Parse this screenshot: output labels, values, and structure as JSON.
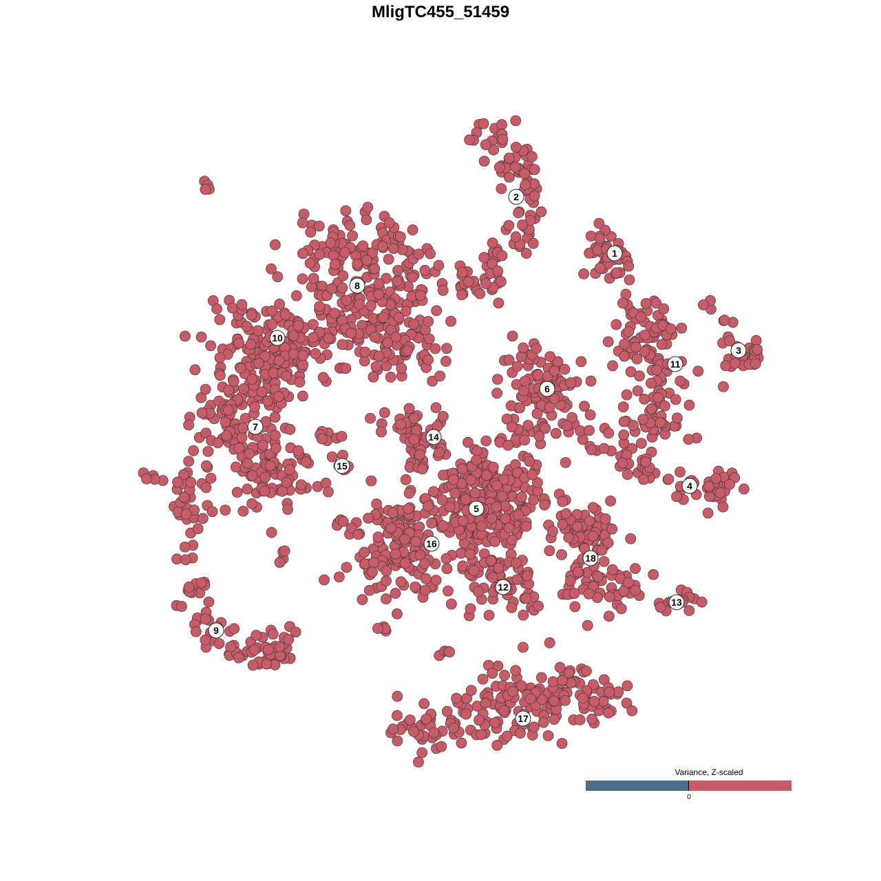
{
  "title": "MligTC455_51459",
  "legend": {
    "title": "Variance, Z-scaled",
    "tick": "0",
    "low_color": "#4f6d8f",
    "high_color": "#c55c68"
  },
  "colors": {
    "point_fill": "#c55c68",
    "point_stroke": "#5a3a3e",
    "label_fill": "#ffffff"
  },
  "chart_data": {
    "type": "scatter",
    "title": "MligTC455_51459",
    "xlabel": "",
    "ylabel": "",
    "grid": false,
    "axes_visible": false,
    "xlim": [
      -64,
      64
    ],
    "ylim": [
      -64,
      64
    ],
    "color_scale": {
      "label": "Variance, Z-scaled",
      "ticks": [
        "0"
      ],
      "all_points_value": "positive"
    },
    "clusters": [
      {
        "id": "1",
        "label": [
          25.3,
          27.2
        ],
        "path": [
          [
            23.5,
            30.5
          ],
          [
            23,
            27.5
          ],
          [
            25.5,
            25.5
          ],
          [
            27,
            26.5
          ]
        ],
        "spread": 1.5,
        "n": 40
      },
      {
        "id": "2",
        "label": [
          11,
          35.4
        ],
        "path": [
          [
            5,
            44.5
          ],
          [
            10,
            42
          ],
          [
            12,
            38
          ],
          [
            12.5,
            34
          ],
          [
            10,
            29
          ],
          [
            7,
            24
          ],
          [
            2.5,
            22.5
          ]
        ],
        "spread": 1.5,
        "n": 110
      },
      {
        "id": "3",
        "label": [
          43.3,
          13.1
        ],
        "path": [
          [
            39,
            19
          ],
          [
            41,
            17
          ],
          [
            43,
            14
          ],
          [
            46,
            12
          ],
          [
            41,
            10.5
          ]
        ],
        "spread": 1.2,
        "n": 35
      },
      {
        "id": "8",
        "label": [
          -12.1,
          22.5
        ],
        "path": [
          [
            -19,
            25
          ],
          [
            -13,
            28
          ],
          [
            -6,
            27
          ],
          [
            -4,
            22
          ],
          [
            -10,
            20
          ],
          [
            -18,
            18
          ],
          [
            -4,
            13
          ],
          [
            -6,
            16
          ]
        ],
        "spread": 3,
        "n": 300
      },
      {
        "id": "10",
        "label": [
          -23.7,
          14.9
        ],
        "path": [
          [
            -32,
            14
          ],
          [
            -25,
            16
          ],
          [
            -19,
            13
          ],
          [
            -28,
            10
          ],
          [
            -22,
            9
          ]
        ],
        "spread": 2.5,
        "n": 140
      },
      {
        "id": "7",
        "label": [
          -26.9,
          2
        ],
        "path": [
          [
            -33,
            6
          ],
          [
            -29,
            4
          ],
          [
            -24,
            7
          ],
          [
            -34,
            2
          ],
          [
            -27,
            -1
          ],
          [
            -24,
            -4
          ],
          [
            -23,
            -7
          ],
          [
            -28,
            -3
          ]
        ],
        "spread": 2.5,
        "n": 180
      },
      {
        "id": "9",
        "label": [
          -32.6,
          -27.6
        ],
        "path": [
          [
            -37,
            -4
          ],
          [
            -37,
            -12
          ],
          [
            -37,
            -20
          ],
          [
            -35,
            -26
          ],
          [
            -30,
            -30
          ],
          [
            -25,
            -32
          ],
          [
            -22,
            -29
          ]
        ],
        "spread": 1.3,
        "n": 110
      },
      {
        "id": "15",
        "label": [
          -14.3,
          -3.7
        ],
        "path": [
          [
            -18,
            1.5
          ],
          [
            -15,
            -1
          ],
          [
            -14.5,
            -4
          ],
          [
            -16,
            -6.5
          ]
        ],
        "spread": 0.8,
        "n": 14
      },
      {
        "id": "14",
        "label": [
          -1,
          0.5
        ],
        "path": [
          [
            -10,
            2.8
          ],
          [
            -5,
            3.5
          ],
          [
            -3,
            1
          ],
          [
            -2,
            -1.5
          ],
          [
            -3,
            -2
          ]
        ],
        "spread": 1.5,
        "n": 50
      },
      {
        "id": "5",
        "label": [
          5.2,
          -9.9
        ],
        "path": [
          [
            2,
            -3
          ],
          [
            5,
            -6
          ],
          [
            8,
            -8
          ],
          [
            4,
            -11
          ],
          [
            6,
            -14
          ],
          [
            10,
            -11
          ],
          [
            12,
            -6
          ],
          [
            3,
            -17
          ]
        ],
        "spread": 3,
        "n": 260
      },
      {
        "id": "16",
        "label": [
          -1.3,
          -15
        ],
        "path": [
          [
            -7,
            -10
          ],
          [
            -3,
            -11
          ],
          [
            -8,
            -15
          ],
          [
            -11,
            -18
          ],
          [
            -3,
            -18
          ],
          [
            -6,
            -13
          ],
          [
            -2,
            -21
          ]
        ],
        "spread": 2.5,
        "n": 150
      },
      {
        "id": "12",
        "label": [
          9.1,
          -21.3
        ],
        "path": [
          [
            6,
            -18
          ],
          [
            9,
            -20
          ],
          [
            11,
            -22
          ],
          [
            7,
            -24
          ]
        ],
        "spread": 2,
        "n": 60
      },
      {
        "id": "6",
        "label": [
          15.5,
          7.5
        ],
        "path": [
          [
            11,
            10.5
          ],
          [
            15,
            11
          ],
          [
            17,
            8
          ],
          [
            13,
            5
          ],
          [
            17,
            4
          ],
          [
            13,
            2
          ],
          [
            11,
            -2
          ]
        ],
        "spread": 2,
        "n": 110
      },
      {
        "id": "18",
        "label": [
          21.8,
          -17.1
        ],
        "path": [
          [
            16,
            -11
          ],
          [
            21,
            -12
          ],
          [
            24,
            -13
          ],
          [
            19,
            -17
          ],
          [
            20,
            -22
          ],
          [
            25,
            -20
          ],
          [
            27,
            -19
          ],
          [
            23,
            -25
          ]
        ],
        "spread": 1.8,
        "n": 110
      },
      {
        "id": "13",
        "label": [
          34.3,
          -23.5
        ],
        "path": [
          [
            32,
            -23.5
          ],
          [
            35,
            -24
          ],
          [
            37,
            -22.5
          ]
        ],
        "spread": 0.8,
        "n": 14
      },
      {
        "id": "11",
        "label": [
          34.1,
          11.1
        ],
        "path": [
          [
            29,
            20
          ],
          [
            31,
            17
          ],
          [
            32,
            14
          ],
          [
            27,
            13
          ],
          [
            33,
            11
          ],
          [
            33,
            6
          ],
          [
            31,
            3
          ],
          [
            28,
            2
          ],
          [
            35,
            1
          ]
        ],
        "spread": 1.8,
        "n": 130
      },
      {
        "id": "4",
        "label": [
          36.2,
          -6.6
        ],
        "path": [
          [
            22,
            3.5
          ],
          [
            24,
            0
          ],
          [
            27,
            -3
          ],
          [
            31,
            -5
          ],
          [
            36,
            -7
          ],
          [
            40,
            -7.5
          ],
          [
            42,
            -6.5
          ]
        ],
        "spread": 1.2,
        "n": 70
      },
      {
        "id": "17",
        "label": [
          12,
          -40.4
        ],
        "path": [
          [
            -6,
            -42
          ],
          [
            -2,
            -42.5
          ],
          [
            4,
            -41.5
          ],
          [
            8,
            -37
          ],
          [
            13,
            -36
          ],
          [
            20,
            -36
          ],
          [
            25,
            -37
          ],
          [
            14,
            -40
          ],
          [
            10,
            -42
          ]
        ],
        "spread": 2,
        "n": 200
      }
    ],
    "outlier_groups": [
      [
        -34.5,
        36.5
      ],
      [
        -42,
        -5
      ],
      [
        -23,
        -16.5
      ],
      [
        -15,
        -12
      ],
      [
        1,
        -31
      ],
      [
        -8,
        -27.5
      ]
    ]
  }
}
